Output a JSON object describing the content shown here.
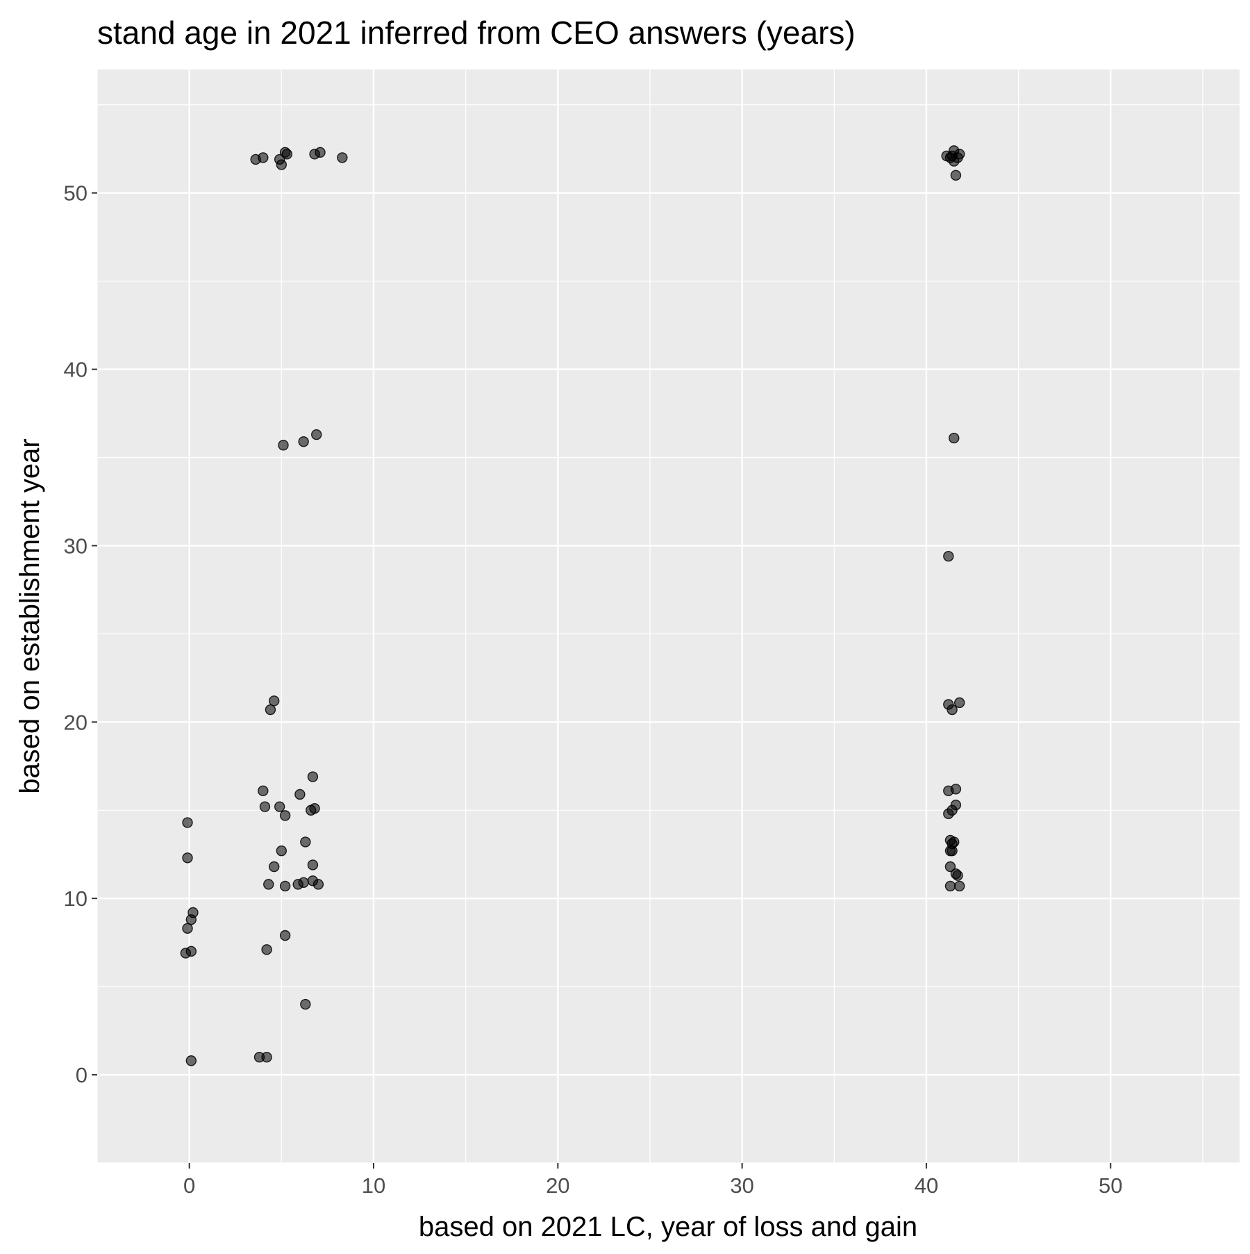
{
  "chart_data": {
    "type": "scatter",
    "title": "stand age in 2021 inferred from CEO answers (years)",
    "xlabel": "based on 2021 LC, year of loss and gain",
    "ylabel": "based on establishment year",
    "xlim": [
      -5,
      57
    ],
    "ylim": [
      -5,
      57
    ],
    "xticks": [
      "0",
      "10",
      "20",
      "30",
      "40",
      "50"
    ],
    "yticks": [
      "0",
      "10",
      "20",
      "30",
      "40",
      "50"
    ],
    "grid": true,
    "panel_background": "#ebebeb",
    "grid_color": "#ffffff",
    "point_color": "#000000",
    "point_alpha": 0.55,
    "points": [
      {
        "x": 3.6,
        "y": 51.9
      },
      {
        "x": 4.0,
        "y": 52.0
      },
      {
        "x": 4.9,
        "y": 51.9
      },
      {
        "x": 5.0,
        "y": 51.6
      },
      {
        "x": 5.2,
        "y": 52.3
      },
      {
        "x": 5.3,
        "y": 52.2
      },
      {
        "x": 6.8,
        "y": 52.2
      },
      {
        "x": 7.1,
        "y": 52.3
      },
      {
        "x": 8.3,
        "y": 52.0
      },
      {
        "x": 41.1,
        "y": 52.1
      },
      {
        "x": 41.3,
        "y": 52.0
      },
      {
        "x": 41.4,
        "y": 52.1
      },
      {
        "x": 41.5,
        "y": 52.4
      },
      {
        "x": 41.5,
        "y": 51.8
      },
      {
        "x": 41.7,
        "y": 52.0
      },
      {
        "x": 41.8,
        "y": 52.2
      },
      {
        "x": 41.6,
        "y": 51.0
      },
      {
        "x": 5.1,
        "y": 35.7
      },
      {
        "x": 6.2,
        "y": 35.9
      },
      {
        "x": 6.9,
        "y": 36.3
      },
      {
        "x": 41.5,
        "y": 36.1
      },
      {
        "x": 41.2,
        "y": 29.4
      },
      {
        "x": 4.4,
        "y": 20.7
      },
      {
        "x": 4.6,
        "y": 21.2
      },
      {
        "x": 41.2,
        "y": 21.0
      },
      {
        "x": 41.4,
        "y": 20.7
      },
      {
        "x": 41.8,
        "y": 21.1
      },
      {
        "x": 6.7,
        "y": 16.9
      },
      {
        "x": 4.0,
        "y": 16.1
      },
      {
        "x": 6.0,
        "y": 15.9
      },
      {
        "x": 4.1,
        "y": 15.2
      },
      {
        "x": 4.9,
        "y": 15.2
      },
      {
        "x": 6.8,
        "y": 15.1
      },
      {
        "x": 6.6,
        "y": 15.0
      },
      {
        "x": 5.2,
        "y": 14.7
      },
      {
        "x": 6.3,
        "y": 13.2
      },
      {
        "x": 5.0,
        "y": 12.7
      },
      {
        "x": 4.6,
        "y": 11.8
      },
      {
        "x": 6.7,
        "y": 11.9
      },
      {
        "x": 4.3,
        "y": 10.8
      },
      {
        "x": 5.2,
        "y": 10.7
      },
      {
        "x": 5.9,
        "y": 10.8
      },
      {
        "x": 6.2,
        "y": 10.9
      },
      {
        "x": 6.7,
        "y": 11.0
      },
      {
        "x": 7.0,
        "y": 10.8
      },
      {
        "x": 5.2,
        "y": 7.9
      },
      {
        "x": 4.2,
        "y": 7.1
      },
      {
        "x": 6.3,
        "y": 4.0
      },
      {
        "x": 3.8,
        "y": 1.0
      },
      {
        "x": 4.2,
        "y": 1.0
      },
      {
        "x": -0.1,
        "y": 14.3
      },
      {
        "x": -0.1,
        "y": 12.3
      },
      {
        "x": 0.2,
        "y": 9.2
      },
      {
        "x": 0.1,
        "y": 8.8
      },
      {
        "x": -0.1,
        "y": 8.3
      },
      {
        "x": 0.1,
        "y": 7.0
      },
      {
        "x": -0.2,
        "y": 6.9
      },
      {
        "x": 0.1,
        "y": 0.8
      },
      {
        "x": 41.2,
        "y": 16.1
      },
      {
        "x": 41.6,
        "y": 16.2
      },
      {
        "x": 41.6,
        "y": 15.3
      },
      {
        "x": 41.4,
        "y": 15.0
      },
      {
        "x": 41.2,
        "y": 14.8
      },
      {
        "x": 41.3,
        "y": 13.3
      },
      {
        "x": 41.5,
        "y": 13.2
      },
      {
        "x": 41.4,
        "y": 13.1
      },
      {
        "x": 41.3,
        "y": 12.7
      },
      {
        "x": 41.4,
        "y": 12.7
      },
      {
        "x": 41.3,
        "y": 11.8
      },
      {
        "x": 41.6,
        "y": 11.4
      },
      {
        "x": 41.7,
        "y": 11.3
      },
      {
        "x": 41.3,
        "y": 10.7
      },
      {
        "x": 41.8,
        "y": 10.7
      }
    ]
  }
}
